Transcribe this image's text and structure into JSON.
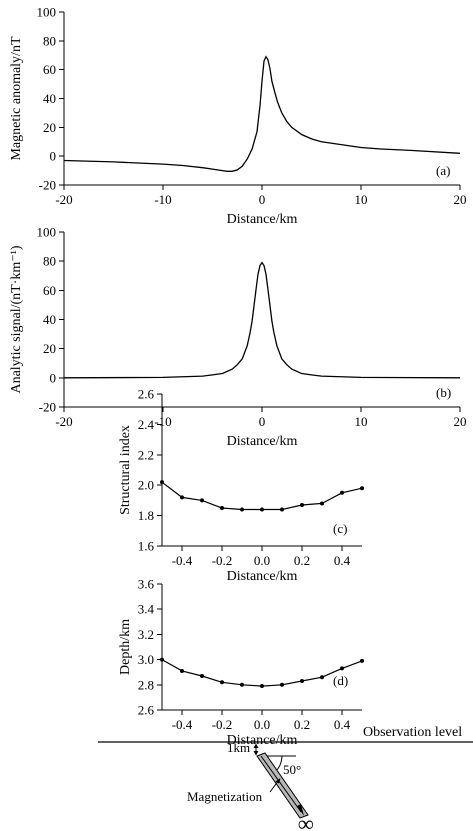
{
  "chart_data": [
    {
      "id": "a",
      "type": "line",
      "tag": "(a)",
      "xlabel": "Distance/km",
      "ylabel": "Magnetic anomaly/nT",
      "xlim": [
        -20,
        20
      ],
      "ylim": [
        -20,
        100
      ],
      "xticks": [
        -20,
        -10,
        0,
        10,
        20
      ],
      "yticks": [
        -20,
        0,
        20,
        40,
        60,
        80,
        100
      ],
      "x": [
        -20,
        -15,
        -10,
        -8,
        -6,
        -5,
        -4,
        -3.5,
        -3,
        -2.5,
        -2,
        -1.5,
        -1,
        -0.5,
        -0.2,
        0,
        0.2,
        0.4,
        0.6,
        0.8,
        1,
        1.3,
        1.6,
        2,
        2.5,
        3,
        4,
        5,
        6,
        8,
        10,
        12,
        15,
        20
      ],
      "y": [
        -3,
        -4,
        -5.5,
        -6.5,
        -8,
        -9,
        -10,
        -10.5,
        -10.5,
        -9.5,
        -7,
        -2,
        5,
        17,
        35,
        52,
        66,
        69,
        67,
        61,
        52,
        44,
        37,
        30,
        24,
        20,
        15,
        12,
        10,
        8,
        6,
        5,
        4,
        2
      ],
      "gridlines": false
    },
    {
      "id": "b",
      "type": "line",
      "tag": "(b)",
      "xlabel": "Distance/km",
      "ylabel": "Analytic signal/(nT·km⁻¹)",
      "xlim": [
        -20,
        20
      ],
      "ylim": [
        -20,
        100
      ],
      "xticks": [
        -20,
        -10,
        0,
        10,
        20
      ],
      "yticks": [
        -20,
        0,
        20,
        40,
        60,
        80,
        100
      ],
      "x": [
        -20,
        -10,
        -6,
        -5,
        -4,
        -3,
        -2.5,
        -2,
        -1.5,
        -1.2,
        -1,
        -0.8,
        -0.6,
        -0.4,
        -0.2,
        0,
        0.2,
        0.4,
        0.6,
        0.8,
        1,
        1.2,
        1.5,
        2,
        2.5,
        3,
        4,
        5,
        6,
        10,
        20
      ],
      "y": [
        0,
        0.3,
        1.2,
        2,
        3,
        6,
        9,
        13,
        22,
        31,
        39,
        50,
        61,
        71,
        77,
        79,
        77,
        71,
        61,
        50,
        39,
        31,
        22,
        13,
        9,
        6,
        3,
        2,
        1.2,
        0.3,
        0
      ],
      "gridlines": false
    },
    {
      "id": "c",
      "type": "line",
      "tag": "(c)",
      "xlabel": "Distance/km",
      "ylabel": "Structural index",
      "xlim": [
        -0.5,
        0.5
      ],
      "ylim": [
        1.6,
        2.6
      ],
      "xticks": [
        -0.4,
        -0.2,
        0.0,
        0.2,
        0.4
      ],
      "xtick_labels": [
        "-0.4",
        "-0.2",
        "0.0",
        "0.2",
        "0.4"
      ],
      "yticks": [
        1.6,
        1.8,
        2.0,
        2.2,
        2.4,
        2.6
      ],
      "ytick_labels": [
        "1.6",
        "1.8",
        "2.0",
        "2.2",
        "2.4",
        "2.6"
      ],
      "x": [
        -0.5,
        -0.4,
        -0.3,
        -0.2,
        -0.1,
        0.0,
        0.1,
        0.2,
        0.3,
        0.4,
        0.5
      ],
      "y": [
        2.02,
        1.92,
        1.9,
        1.85,
        1.84,
        1.84,
        1.84,
        1.87,
        1.88,
        1.95,
        1.98
      ],
      "gridlines": false
    },
    {
      "id": "d",
      "type": "line",
      "tag": "(d)",
      "xlabel": "Distance/km",
      "ylabel": "Depth/km",
      "xlim": [
        -0.5,
        0.5
      ],
      "ylim": [
        2.6,
        3.6
      ],
      "xticks": [
        -0.4,
        -0.2,
        0.0,
        0.2,
        0.4
      ],
      "xtick_labels": [
        "-0.4",
        "-0.2",
        "0.0",
        "0.2",
        "0.4"
      ],
      "yticks": [
        2.6,
        2.8,
        3.0,
        3.2,
        3.4,
        3.6
      ],
      "ytick_labels": [
        "2.6",
        "2.8",
        "3.0",
        "3.2",
        "3.4",
        "3.6"
      ],
      "x": [
        -0.5,
        -0.4,
        -0.3,
        -0.2,
        -0.1,
        0.0,
        0.1,
        0.2,
        0.3,
        0.4,
        0.5
      ],
      "y": [
        3.0,
        2.91,
        2.87,
        2.82,
        2.8,
        2.79,
        2.8,
        2.83,
        2.86,
        2.93,
        2.99
      ],
      "gridlines": false
    }
  ],
  "diagram": {
    "observation_label": "Observation level",
    "depth_label": "1km",
    "angle_label": "50°",
    "magnetization_label": "Magnetization",
    "infinity_label": "∞"
  }
}
